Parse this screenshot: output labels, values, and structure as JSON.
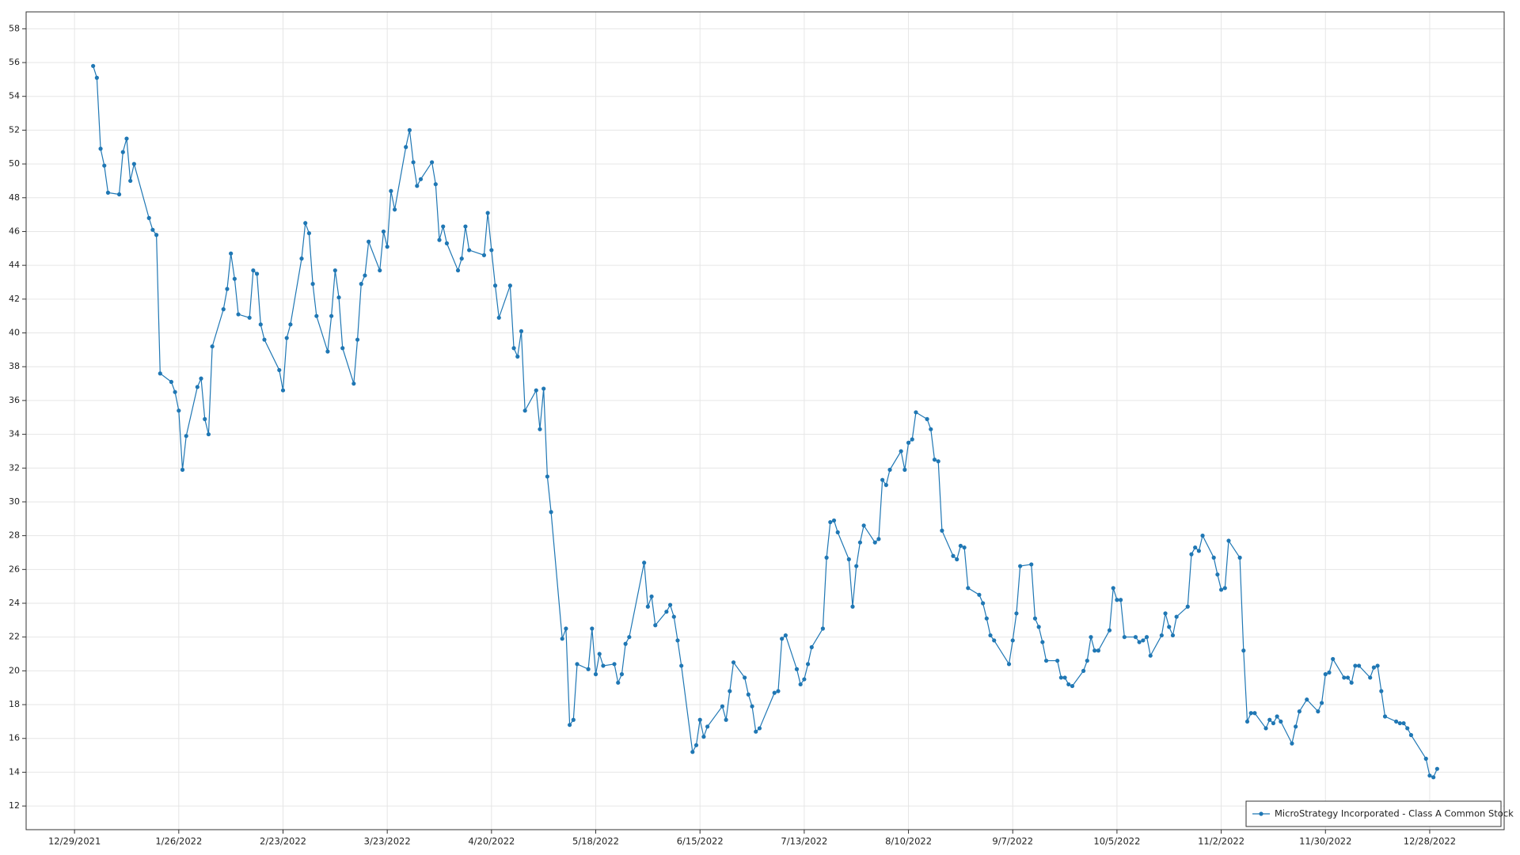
{
  "chart_data": {
    "type": "line",
    "grid": true,
    "legend": "lower right",
    "xlim": [
      "12/16/2021",
      "1/17/2023"
    ],
    "xticks": [
      "12/29/2021",
      "1/26/2022",
      "2/23/2022",
      "3/23/2022",
      "4/20/2022",
      "5/18/2022",
      "6/15/2022",
      "7/13/2022",
      "8/10/2022",
      "9/7/2022",
      "10/5/2022",
      "11/2/2022",
      "11/30/2022",
      "12/28/2022"
    ],
    "ylim": [
      10.6,
      59
    ],
    "yticks": [
      12,
      14,
      16,
      18,
      20,
      22,
      24,
      26,
      28,
      30,
      32,
      34,
      36,
      38,
      40,
      42,
      44,
      46,
      48,
      50,
      52,
      54,
      56,
      58
    ],
    "x": [
      "1/3/2022",
      "1/4/2022",
      "1/5/2022",
      "1/6/2022",
      "1/7/2022",
      "1/10/2022",
      "1/11/2022",
      "1/12/2022",
      "1/13/2022",
      "1/14/2022",
      "1/18/2022",
      "1/19/2022",
      "1/20/2022",
      "1/21/2022",
      "1/24/2022",
      "1/25/2022",
      "1/26/2022",
      "1/27/2022",
      "1/28/2022",
      "1/31/2022",
      "2/1/2022",
      "2/2/2022",
      "2/3/2022",
      "2/4/2022",
      "2/7/2022",
      "2/8/2022",
      "2/9/2022",
      "2/10/2022",
      "2/11/2022",
      "2/14/2022",
      "2/15/2022",
      "2/16/2022",
      "2/17/2022",
      "2/18/2022",
      "2/22/2022",
      "2/23/2022",
      "2/24/2022",
      "2/25/2022",
      "2/28/2022",
      "3/1/2022",
      "3/2/2022",
      "3/3/2022",
      "3/4/2022",
      "3/7/2022",
      "3/8/2022",
      "3/9/2022",
      "3/10/2022",
      "3/11/2022",
      "3/14/2022",
      "3/15/2022",
      "3/16/2022",
      "3/17/2022",
      "3/18/2022",
      "3/21/2022",
      "3/22/2022",
      "3/23/2022",
      "3/24/2022",
      "3/25/2022",
      "3/28/2022",
      "3/29/2022",
      "3/30/2022",
      "3/31/2022",
      "4/1/2022",
      "4/4/2022",
      "4/5/2022",
      "4/6/2022",
      "4/7/2022",
      "4/8/2022",
      "4/11/2022",
      "4/12/2022",
      "4/13/2022",
      "4/14/2022",
      "4/18/2022",
      "4/19/2022",
      "4/20/2022",
      "4/21/2022",
      "4/22/2022",
      "4/25/2022",
      "4/26/2022",
      "4/27/2022",
      "4/28/2022",
      "4/29/2022",
      "5/2/2022",
      "5/3/2022",
      "5/4/2022",
      "5/5/2022",
      "5/6/2022",
      "5/9/2022",
      "5/10/2022",
      "5/11/2022",
      "5/12/2022",
      "5/13/2022",
      "5/16/2022",
      "5/17/2022",
      "5/18/2022",
      "5/19/2022",
      "5/20/2022",
      "5/23/2022",
      "5/24/2022",
      "5/25/2022",
      "5/26/2022",
      "5/27/2022",
      "5/31/2022",
      "6/1/2022",
      "6/2/2022",
      "6/3/2022",
      "6/6/2022",
      "6/7/2022",
      "6/8/2022",
      "6/9/2022",
      "6/10/2022",
      "6/13/2022",
      "6/14/2022",
      "6/15/2022",
      "6/16/2022",
      "6/17/2022",
      "6/21/2022",
      "6/22/2022",
      "6/23/2022",
      "6/24/2022",
      "6/27/2022",
      "6/28/2022",
      "6/29/2022",
      "6/30/2022",
      "7/1/2022",
      "7/5/2022",
      "7/6/2022",
      "7/7/2022",
      "7/8/2022",
      "7/11/2022",
      "7/12/2022",
      "7/13/2022",
      "7/14/2022",
      "7/15/2022",
      "7/18/2022",
      "7/19/2022",
      "7/20/2022",
      "7/21/2022",
      "7/22/2022",
      "7/25/2022",
      "7/26/2022",
      "7/27/2022",
      "7/28/2022",
      "7/29/2022",
      "8/1/2022",
      "8/2/2022",
      "8/3/2022",
      "8/4/2022",
      "8/5/2022",
      "8/8/2022",
      "8/9/2022",
      "8/10/2022",
      "8/11/2022",
      "8/12/2022",
      "8/15/2022",
      "8/16/2022",
      "8/17/2022",
      "8/18/2022",
      "8/19/2022",
      "8/22/2022",
      "8/23/2022",
      "8/24/2022",
      "8/25/2022",
      "8/26/2022",
      "8/29/2022",
      "8/30/2022",
      "8/31/2022",
      "9/1/2022",
      "9/2/2022",
      "9/6/2022",
      "9/7/2022",
      "9/8/2022",
      "9/9/2022",
      "9/12/2022",
      "9/13/2022",
      "9/14/2022",
      "9/15/2022",
      "9/16/2022",
      "9/19/2022",
      "9/20/2022",
      "9/21/2022",
      "9/22/2022",
      "9/23/2022",
      "9/26/2022",
      "9/27/2022",
      "9/28/2022",
      "9/29/2022",
      "9/30/2022",
      "10/3/2022",
      "10/4/2022",
      "10/5/2022",
      "10/6/2022",
      "10/7/2022",
      "10/10/2022",
      "10/11/2022",
      "10/12/2022",
      "10/13/2022",
      "10/14/2022",
      "10/17/2022",
      "10/18/2022",
      "10/19/2022",
      "10/20/2022",
      "10/21/2022",
      "10/24/2022",
      "10/25/2022",
      "10/26/2022",
      "10/27/2022",
      "10/28/2022",
      "10/31/2022",
      "11/1/2022",
      "11/2/2022",
      "11/3/2022",
      "11/4/2022",
      "11/7/2022",
      "11/8/2022",
      "11/9/2022",
      "11/10/2022",
      "11/11/2022",
      "11/14/2022",
      "11/15/2022",
      "11/16/2022",
      "11/17/2022",
      "11/18/2022",
      "11/21/2022",
      "11/22/2022",
      "11/23/2022",
      "11/25/2022",
      "11/28/2022",
      "11/29/2022",
      "11/30/2022",
      "12/1/2022",
      "12/2/2022",
      "12/5/2022",
      "12/6/2022",
      "12/7/2022",
      "12/8/2022",
      "12/9/2022",
      "12/12/2022",
      "12/13/2022",
      "12/14/2022",
      "12/15/2022",
      "12/16/2022",
      "12/19/2022",
      "12/20/2022",
      "12/21/2022",
      "12/22/2022",
      "12/23/2022",
      "12/27/2022",
      "12/28/2022",
      "12/29/2022",
      "12/30/2022"
    ],
    "series": [
      {
        "name": "MicroStrategy Incorporated - Class A Common Stock",
        "color": "#1f77b4",
        "values": [
          55.8,
          55.1,
          50.9,
          49.9,
          48.3,
          48.2,
          50.7,
          51.5,
          49.0,
          50.0,
          46.8,
          46.1,
          45.8,
          37.6,
          37.1,
          36.5,
          35.4,
          31.9,
          33.9,
          36.8,
          37.3,
          34.9,
          34.0,
          39.2,
          41.4,
          42.6,
          44.7,
          43.2,
          41.1,
          40.9,
          43.7,
          43.5,
          40.5,
          39.6,
          37.8,
          36.6,
          39.7,
          40.5,
          44.4,
          46.5,
          45.9,
          42.9,
          41.0,
          38.9,
          41.0,
          43.7,
          42.1,
          39.1,
          37.0,
          39.6,
          42.9,
          43.4,
          45.4,
          43.7,
          46.0,
          45.1,
          48.4,
          47.3,
          51.0,
          52.0,
          50.1,
          48.7,
          49.1,
          50.1,
          48.8,
          45.5,
          46.3,
          45.3,
          43.7,
          44.4,
          46.3,
          44.9,
          44.6,
          47.1,
          44.9,
          42.8,
          40.9,
          42.8,
          39.1,
          38.6,
          40.1,
          35.4,
          36.6,
          34.3,
          36.7,
          31.5,
          29.4,
          21.9,
          22.5,
          16.8,
          17.1,
          20.4,
          20.1,
          22.5,
          19.8,
          21.0,
          20.3,
          20.4,
          19.3,
          19.8,
          21.6,
          22.0,
          26.4,
          23.8,
          24.4,
          22.7,
          23.5,
          23.9,
          23.2,
          21.8,
          20.3,
          15.2,
          15.6,
          17.1,
          16.1,
          16.7,
          17.9,
          17.1,
          18.8,
          20.5,
          19.6,
          18.6,
          17.9,
          16.4,
          16.6,
          18.7,
          18.8,
          21.9,
          22.1,
          20.1,
          19.2,
          19.5,
          20.4,
          21.4,
          22.5,
          26.7,
          28.8,
          28.9,
          28.2,
          26.6,
          23.8,
          26.2,
          27.6,
          28.6,
          27.6,
          27.8,
          31.3,
          31.0,
          31.9,
          33.0,
          31.9,
          33.5,
          33.7,
          35.3,
          34.9,
          34.3,
          32.5,
          32.4,
          28.3,
          26.8,
          26.6,
          27.4,
          27.3,
          24.9,
          24.5,
          24.0,
          23.1,
          22.1,
          21.8,
          20.4,
          21.8,
          23.4,
          26.2,
          26.3,
          23.1,
          22.6,
          21.7,
          20.6,
          20.6,
          19.6,
          19.6,
          19.2,
          19.1,
          20.0,
          20.6,
          22.0,
          21.2,
          21.2,
          22.4,
          24.9,
          24.2,
          24.2,
          22.0,
          22.0,
          21.7,
          21.8,
          22.0,
          20.9,
          22.1,
          23.4,
          22.6,
          22.1,
          23.2,
          23.8,
          26.9,
          27.3,
          27.1,
          28.0,
          26.7,
          25.7,
          24.8,
          24.9,
          27.7,
          26.7,
          21.2,
          17.0,
          17.5,
          17.5,
          16.6,
          17.1,
          16.9,
          17.3,
          17.0,
          15.7,
          16.7,
          17.6,
          18.3,
          17.6,
          18.1,
          19.8,
          19.9,
          20.7,
          19.6,
          19.6,
          19.3,
          20.3,
          20.3,
          19.6,
          20.2,
          20.3,
          18.8,
          17.3,
          17.0,
          16.9,
          16.9,
          16.6,
          16.2,
          14.8,
          13.8,
          13.7,
          14.2
        ]
      }
    ]
  }
}
